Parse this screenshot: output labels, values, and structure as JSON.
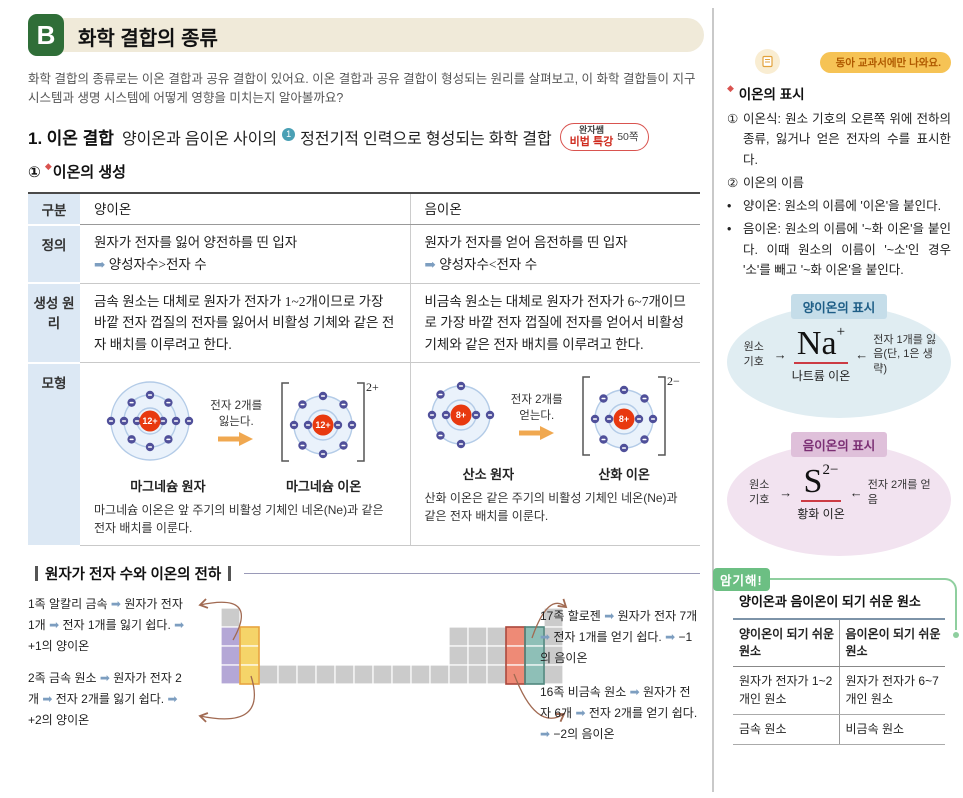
{
  "page": {
    "header": {
      "badge_letter": "B",
      "title": "화학 결합의 종류"
    },
    "intro": "화학 결합의 종류로는 이온 결합과 공유 결합이 있어요. 이온 결합과 공유 결합이 형성되는 원리를 살펴보고, 이 화학 결합들이 지구 시스템과 생명 시스템에 어떻게 영향을 미치는지 알아볼까요?"
  },
  "section": {
    "number": "1.",
    "title": "이온 결합",
    "def_pre": "양이온과 음이온 사이의",
    "footnote_num": "1",
    "def_post": "정전기적 인력으로 형성되는 화학 결합",
    "badge_top": "완자쌤",
    "badge_main": "비법 특강",
    "badge_page": "50쪽",
    "sub_num": "①",
    "sub_title": "이온의 생성"
  },
  "ion_table": {
    "col_category": "구분",
    "col_cation": "양이온",
    "col_anion": "음이온",
    "row_definition": {
      "label": "정의",
      "cation_text": "원자가 전자를 잃어 양전하를 띤 입자",
      "cation_sub": "➡ 양성자수>전자 수",
      "anion_text": "원자가 전자를 얻어 음전하를 띤 입자",
      "anion_sub": "➡ 양성자수<전자 수"
    },
    "row_principle": {
      "label": "생성 원리",
      "cation_text": "금속 원소는 대체로 원자가 전자가 1~2개이므로 가장 바깥 전자 껍질의 전자를 잃어서 비활성 기체와 같은 전자 배치를 이루려고 한다.",
      "anion_text": "비금속 원소는 대체로 원자가 전자가 6~7개이므로 가장 바깥 전자 껍질에 전자를 얻어서 비활성 기체와 같은 전자 배치를 이루려고 한다."
    },
    "row_model": {
      "label": "모형",
      "cation": {
        "arrow_label_1": "전자 2개를",
        "arrow_label_2": "잃는다.",
        "atom_name": "마그네슘 원자",
        "ion_name": "마그네슘 이온",
        "caption": "마그네슘 이온은 앞 주기의 비활성 기체인 네온(Ne)과 같은 전자 배치를 이룬다."
      },
      "anion": {
        "arrow_label_1": "전자 2개를",
        "arrow_label_2": "얻는다.",
        "atom_name": "산소 원자",
        "ion_name": "산화 이온",
        "caption": "산화 이온은 같은 주기의 비활성 기체인 네온(Ne)과 같은 전자 배치를 이룬다."
      }
    }
  },
  "atom_models": {
    "mg_atom": {
      "nucleus_label": "12+",
      "shell_electrons": [
        2,
        8,
        2
      ],
      "bracket_charge": null
    },
    "mg_ion": {
      "nucleus_label": "12+",
      "shell_electrons": [
        2,
        8
      ],
      "bracket_charge": "2+"
    },
    "o_atom": {
      "nucleus_label": "8+",
      "shell_electrons": [
        2,
        6
      ],
      "bracket_charge": null
    },
    "o_ion": {
      "nucleus_label": "8+",
      "shell_electrons": [
        2,
        8
      ],
      "bracket_charge": "2−"
    }
  },
  "valence_section": {
    "title": "원자가 전자 수와 이온의 전하",
    "note_group1": "1족 알칼리 금속 ➡ 원자가 전자 1개 ➡ 전자 1개를 잃기 쉽다. ➡ +1의 양이온",
    "note_group2": "2족 금속 원소 ➡ 원자가 전자 2개 ➡ 전자 2개를 잃기 쉽다. ➡ +2의 양이온",
    "note_group17": "17족 할로젠 ➡ 원자가 전자 7개 ➡ 전자 1개를 얻기 쉽다. ➡ −1의 음이온",
    "note_group16": "16족 비금속 원소 ➡ 원자가 전자 6개 ➡ 전자 2개를 얻기 쉽다. ➡ −2의 음이온"
  },
  "periodic_colors": {
    "group1": "#b4a7d6",
    "group2": "#f5d469",
    "group2_border": "#e8a33b",
    "group16": "#ee8a76",
    "group16_border": "#a94438",
    "group17": "#8ebfb7",
    "group17_border": "#4e857c",
    "other": "#cbcbcb",
    "arrow": "#a16a52"
  },
  "sidebar": {
    "publisher_badge": "동아 교과서에만 나와요.",
    "note_title": "이온의 표시",
    "items": [
      {
        "marker": "①",
        "text": "이온식: 원소 기호의 오른쪽 위에 전하의 종류, 잃거나 얻은 전자의 수를 표시한다."
      },
      {
        "marker": "②",
        "text": "이온의 이름"
      },
      {
        "marker": "•",
        "text": "양이온: 원소의 이름에 '이온'을 붙인다."
      },
      {
        "marker": "•",
        "text": "음이온: 원소의 이름에 '~화 이온'을 붙인다. 이때 원소의 이름이 '~소'인 경우 '소'를 빼고 '~화 이온'을 붙인다."
      }
    ],
    "cation_display": {
      "header": "양이온의 표시",
      "left_label": "원소 기호",
      "symbol": "Na",
      "charge": "+",
      "right_label": "전자 1개를 잃음(단, 1은 생략)",
      "ion_name": "나트륨 이온"
    },
    "anion_display": {
      "header": "음이온의 표시",
      "left_label": "원소 기호",
      "symbol": "S",
      "charge": "2−",
      "right_label": "전자 2개를 얻음",
      "ion_name": "황화 이온"
    },
    "memorize": {
      "badge": "암기해!",
      "title": "양이온과 음이온이 되기 쉬운 원소",
      "table": {
        "headers": [
          "양이온이 되기 쉬운 원소",
          "음이온이 되기 쉬운 원소"
        ],
        "rows": [
          [
            "원자가 전자가 1~2개인 원소",
            "원자가 전자가 6~7개인 원소"
          ],
          [
            "금속 원소",
            "비금속 원소"
          ]
        ]
      }
    }
  }
}
